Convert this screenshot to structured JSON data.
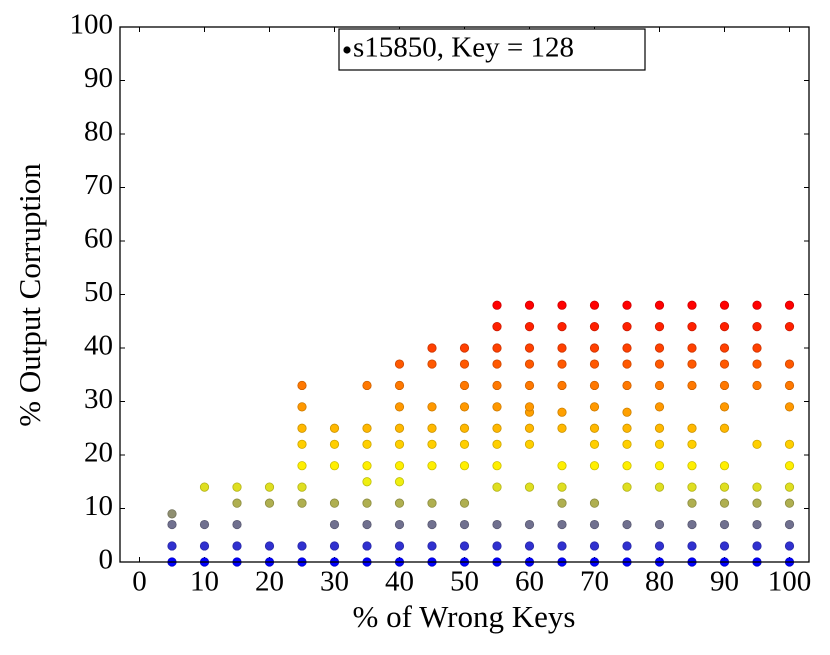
{
  "chart_data": {
    "type": "scatter",
    "xlabel": "% of Wrong Keys",
    "ylabel": "% Output Corruption",
    "xlim": [
      -3,
      103
    ],
    "ylim": [
      0,
      100
    ],
    "xticks": [
      0,
      10,
      20,
      30,
      40,
      50,
      60,
      70,
      80,
      90,
      100
    ],
    "yticks": [
      0,
      10,
      20,
      30,
      40,
      50,
      60,
      70,
      80,
      90,
      100
    ],
    "legend_position": "upper center",
    "colormap": [
      "#0000ff",
      "#ffff00",
      "#ff8000",
      "#ff0000"
    ],
    "series": [
      {
        "name": "s15850, Key = 128",
        "x": [
          5,
          5,
          5,
          5,
          10,
          10,
          10,
          10,
          15,
          15,
          15,
          15,
          15,
          20,
          20,
          20,
          20,
          25,
          25,
          25,
          25,
          25,
          25,
          25,
          25,
          25,
          30,
          30,
          30,
          30,
          30,
          30,
          30,
          35,
          35,
          35,
          35,
          35,
          35,
          35,
          35,
          35,
          40,
          40,
          40,
          40,
          40,
          40,
          40,
          40,
          40,
          40,
          40,
          45,
          45,
          45,
          45,
          45,
          45,
          45,
          45,
          45,
          45,
          50,
          50,
          50,
          50,
          50,
          50,
          50,
          50,
          50,
          50,
          50,
          55,
          55,
          55,
          55,
          55,
          55,
          55,
          55,
          55,
          55,
          55,
          55,
          55,
          60,
          60,
          60,
          60,
          60,
          60,
          60,
          60,
          60,
          60,
          60,
          60,
          60,
          65,
          65,
          65,
          65,
          65,
          65,
          65,
          65,
          65,
          65,
          65,
          65,
          65,
          70,
          70,
          70,
          70,
          70,
          70,
          70,
          70,
          70,
          70,
          70,
          70,
          70,
          75,
          75,
          75,
          75,
          75,
          75,
          75,
          75,
          75,
          75,
          75,
          75,
          75,
          80,
          80,
          80,
          80,
          80,
          80,
          80,
          80,
          80,
          80,
          80,
          80,
          80,
          85,
          85,
          85,
          85,
          85,
          85,
          85,
          85,
          85,
          85,
          85,
          85,
          85,
          90,
          90,
          90,
          90,
          90,
          90,
          90,
          90,
          90,
          90,
          90,
          90,
          90,
          95,
          95,
          95,
          95,
          95,
          95,
          95,
          95,
          95,
          95,
          95,
          100,
          100,
          100,
          100,
          100,
          100,
          100,
          100,
          100,
          100,
          100,
          100
        ],
        "values": [
          0,
          3,
          7,
          9,
          0,
          3,
          7,
          14,
          0,
          3,
          7,
          11,
          14,
          0,
          3,
          11,
          14,
          0,
          3,
          11,
          14,
          18,
          22,
          25,
          29,
          33,
          0,
          3,
          7,
          11,
          18,
          22,
          25,
          0,
          3,
          7,
          11,
          15,
          18,
          22,
          25,
          33,
          0,
          3,
          7,
          11,
          15,
          18,
          22,
          25,
          29,
          33,
          37,
          0,
          3,
          7,
          11,
          18,
          22,
          25,
          29,
          37,
          40,
          0,
          3,
          7,
          11,
          18,
          22,
          25,
          29,
          33,
          37,
          40,
          0,
          3,
          7,
          14,
          18,
          22,
          25,
          29,
          33,
          37,
          40,
          44,
          48,
          0,
          3,
          7,
          14,
          22,
          25,
          28,
          29,
          33,
          37,
          40,
          44,
          48,
          0,
          3,
          7,
          11,
          14,
          18,
          25,
          28,
          33,
          37,
          40,
          44,
          48,
          0,
          3,
          7,
          11,
          18,
          22,
          25,
          29,
          33,
          37,
          40,
          44,
          48,
          0,
          3,
          7,
          14,
          18,
          22,
          25,
          28,
          33,
          37,
          40,
          44,
          48,
          0,
          3,
          7,
          14,
          18,
          22,
          25,
          29,
          33,
          37,
          40,
          44,
          48,
          0,
          3,
          7,
          11,
          14,
          18,
          22,
          25,
          33,
          37,
          40,
          44,
          48,
          0,
          3,
          7,
          11,
          14,
          18,
          25,
          29,
          33,
          37,
          40,
          44,
          48,
          0,
          3,
          7,
          11,
          14,
          22,
          33,
          37,
          40,
          44,
          48,
          0,
          3,
          7,
          11,
          14,
          18,
          22,
          29,
          33,
          37,
          44,
          48
        ]
      }
    ]
  }
}
